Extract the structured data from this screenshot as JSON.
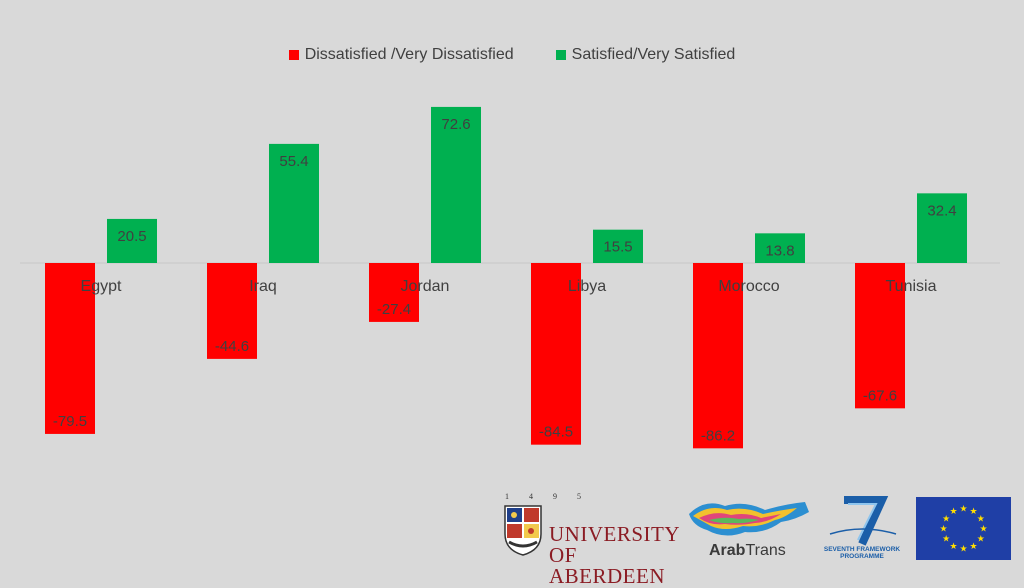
{
  "chart_data": {
    "type": "bar",
    "categories": [
      "Egypt",
      "Iraq",
      "Jordan",
      "Libya",
      "Morocco",
      "Tunisia"
    ],
    "series": [
      {
        "name": "Dissatisfied /Very Dissatisfied",
        "values": [
          -79.5,
          -44.6,
          -27.4,
          -84.5,
          -86.2,
          -67.6
        ],
        "color": "#ff0000"
      },
      {
        "name": "Satisfied/Very Satisfied",
        "values": [
          20.5,
          55.4,
          72.6,
          15.5,
          13.8,
          32.4
        ],
        "color": "#00b050"
      }
    ],
    "ylim": [
      -100,
      80
    ],
    "legend": "top",
    "grid": false,
    "value_labels": [
      "-79.5",
      "-44.6",
      "-27.4",
      "-84.5",
      "-86.2",
      "-67.6",
      "20.5",
      "55.4",
      "72.6",
      "15.5",
      "13.8",
      "32.4"
    ]
  },
  "legend": {
    "dissatisfied": "Dissatisfied /Very Dissatisfied",
    "satisfied": "Satisfied/Very Satisfied"
  },
  "logos": {
    "aberdeen_year": "1 4 9 5",
    "aberdeen_line1": "UNIVERSITY",
    "aberdeen_line2": "OF ABERDEEN",
    "arabtrans_bold": "Arab",
    "arabtrans_rest": "Trans",
    "fp7_line1": "SEVENTH FRAMEWORK",
    "fp7_line2": "PROGRAMME"
  },
  "colors": {
    "background": "#d9d9d9",
    "dissatisfied": "#ff0000",
    "satisfied": "#00b050",
    "label": "#404040",
    "eu_blue": "#1f3fa6",
    "eu_star": "#ffdd00"
  }
}
